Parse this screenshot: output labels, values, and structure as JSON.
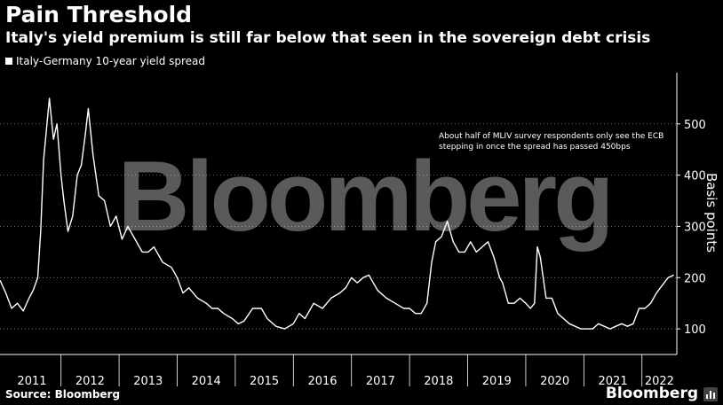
{
  "title": "Pain Threshold",
  "subtitle": "Italy's yield premium is still far below that seen in the sovereign debt crisis",
  "legend_label": "Italy-Germany 10-year yield spread",
  "source": "Source: Bloomberg",
  "brand": "Bloomberg",
  "watermark": "Bloomberg",
  "colors": {
    "background": "#000000",
    "line": "#ffffff",
    "text": "#ffffff",
    "grid": "#ffffff",
    "watermark": "#5a5a5a"
  },
  "chart_data": {
    "type": "line",
    "title": "Pain Threshold",
    "subtitle": "Italy's yield premium is still far below that seen in the sovereign debt crisis",
    "ylabel": "Basis points",
    "ylim": [
      50,
      600
    ],
    "xlim": [
      2010.95,
      2022.6
    ],
    "yticks": [
      100,
      200,
      300,
      400,
      500
    ],
    "xticks": [
      "2011",
      "2012",
      "2013",
      "2014",
      "2015",
      "2016",
      "2017",
      "2018",
      "2019",
      "2020",
      "2021",
      "2022"
    ],
    "annotation": "About half of MLIV survey respondents only see the ECB stepping in once the spread has passed 450bps",
    "series": [
      {
        "name": "Italy-Germany 10-year yield spread",
        "x": [
          2010.95,
          2011.05,
          2011.15,
          2011.25,
          2011.35,
          2011.45,
          2011.52,
          2011.6,
          2011.65,
          2011.7,
          2011.8,
          2011.87,
          2011.93,
          2012.0,
          2012.05,
          2012.12,
          2012.2,
          2012.28,
          2012.35,
          2012.42,
          2012.47,
          2012.55,
          2012.65,
          2012.75,
          2012.85,
          2012.95,
          2013.05,
          2013.15,
          2013.25,
          2013.4,
          2013.5,
          2013.6,
          2013.75,
          2013.9,
          2014.0,
          2014.1,
          2014.2,
          2014.35,
          2014.5,
          2014.6,
          2014.7,
          2014.8,
          2014.95,
          2015.05,
          2015.15,
          2015.3,
          2015.45,
          2015.55,
          2015.7,
          2015.85,
          2016.0,
          2016.1,
          2016.2,
          2016.35,
          2016.5,
          2016.65,
          2016.8,
          2016.9,
          2017.0,
          2017.1,
          2017.2,
          2017.3,
          2017.45,
          2017.6,
          2017.75,
          2017.9,
          2018.0,
          2018.1,
          2018.2,
          2018.3,
          2018.38,
          2018.45,
          2018.55,
          2018.65,
          2018.75,
          2018.85,
          2018.95,
          2019.05,
          2019.15,
          2019.25,
          2019.35,
          2019.45,
          2019.55,
          2019.6,
          2019.7,
          2019.8,
          2019.9,
          2020.0,
          2020.08,
          2020.15,
          2020.2,
          2020.25,
          2020.35,
          2020.45,
          2020.55,
          2020.65,
          2020.75,
          2020.85,
          2020.95,
          2021.05,
          2021.15,
          2021.25,
          2021.35,
          2021.45,
          2021.55,
          2021.65,
          2021.75,
          2021.85,
          2021.95,
          2022.05,
          2022.15,
          2022.25,
          2022.35,
          2022.45,
          2022.55
        ],
        "values": [
          195,
          170,
          140,
          150,
          135,
          160,
          175,
          200,
          290,
          430,
          550,
          470,
          500,
          400,
          350,
          290,
          320,
          400,
          420,
          480,
          530,
          440,
          360,
          350,
          300,
          320,
          275,
          300,
          280,
          250,
          250,
          260,
          230,
          220,
          200,
          170,
          180,
          160,
          150,
          140,
          140,
          130,
          120,
          110,
          115,
          140,
          140,
          120,
          105,
          100,
          110,
          130,
          120,
          150,
          140,
          160,
          170,
          180,
          200,
          190,
          200,
          205,
          175,
          160,
          150,
          140,
          140,
          130,
          130,
          150,
          230,
          270,
          280,
          310,
          270,
          250,
          250,
          270,
          250,
          260,
          270,
          240,
          200,
          190,
          150,
          150,
          160,
          150,
          140,
          150,
          260,
          240,
          160,
          160,
          130,
          120,
          110,
          105,
          100,
          100,
          100,
          110,
          105,
          100,
          105,
          110,
          105,
          110,
          140,
          140,
          150,
          170,
          185,
          200,
          205
        ]
      }
    ]
  }
}
